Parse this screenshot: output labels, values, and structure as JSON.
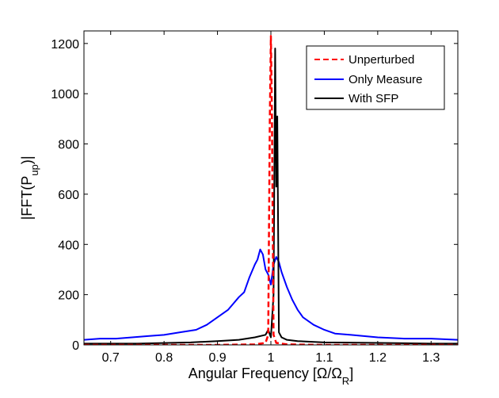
{
  "chart_data": {
    "type": "line",
    "title": "",
    "xlabel": "Angular Frequency [Ω/Ω",
    "xlabel_sub": "R",
    "xlabel_end": "]",
    "ylabel": "|FFT(P",
    "ylabel_sub": "up",
    "ylabel_end": ")|",
    "xlim": [
      0.65,
      1.35
    ],
    "ylim": [
      0,
      1250
    ],
    "xticks": [
      0.7,
      0.8,
      0.9,
      1.0,
      1.1,
      1.2,
      1.3
    ],
    "xtick_labels": [
      "0.7",
      "0.8",
      "0.9",
      "1",
      "1.1",
      "1.2",
      "1.3"
    ],
    "yticks": [
      0,
      200,
      400,
      600,
      800,
      1000,
      1200
    ],
    "ytick_labels": [
      "0",
      "200",
      "400",
      "600",
      "800",
      "1000",
      "1200"
    ],
    "grid": false,
    "legend_position": "top-right",
    "series": [
      {
        "name": "Unperturbed",
        "color": "#ff0000",
        "style": "dashed",
        "x": [
          0.65,
          0.9,
          0.97,
          0.99,
          0.995,
          0.998,
          1.0,
          1.002,
          1.005,
          1.01,
          1.03,
          1.1,
          1.35
        ],
        "values": [
          0,
          0,
          2,
          8,
          40,
          900,
          1230,
          900,
          40,
          8,
          2,
          0,
          0
        ]
      },
      {
        "name": "Only Measure",
        "color": "#0000ff",
        "style": "solid",
        "x": [
          0.65,
          0.68,
          0.71,
          0.74,
          0.77,
          0.8,
          0.83,
          0.86,
          0.88,
          0.9,
          0.92,
          0.94,
          0.95,
          0.96,
          0.97,
          0.975,
          0.98,
          0.985,
          0.99,
          0.995,
          1.0,
          1.005,
          1.01,
          1.015,
          1.02,
          1.025,
          1.03,
          1.04,
          1.05,
          1.06,
          1.08,
          1.1,
          1.12,
          1.15,
          1.2,
          1.25,
          1.3,
          1.35
        ],
        "values": [
          20,
          25,
          25,
          30,
          35,
          40,
          50,
          60,
          80,
          110,
          140,
          190,
          210,
          270,
          320,
          340,
          380,
          360,
          300,
          280,
          240,
          320,
          350,
          330,
          290,
          260,
          230,
          180,
          140,
          110,
          80,
          60,
          45,
          40,
          30,
          25,
          25,
          20
        ]
      },
      {
        "name": "With SFP",
        "color": "#000000",
        "style": "solid",
        "x": [
          0.65,
          0.75,
          0.85,
          0.9,
          0.94,
          0.97,
          0.99,
          0.995,
          1.0,
          1.005,
          1.008,
          1.01,
          1.012,
          1.015,
          1.02,
          1.03,
          1.05,
          1.1,
          1.2,
          1.3,
          1.35
        ],
        "values": [
          5,
          5,
          10,
          15,
          20,
          30,
          40,
          60,
          30,
          200,
          1180,
          630,
          910,
          50,
          30,
          20,
          15,
          10,
          8,
          5,
          5
        ]
      }
    ],
    "annotations": []
  }
}
